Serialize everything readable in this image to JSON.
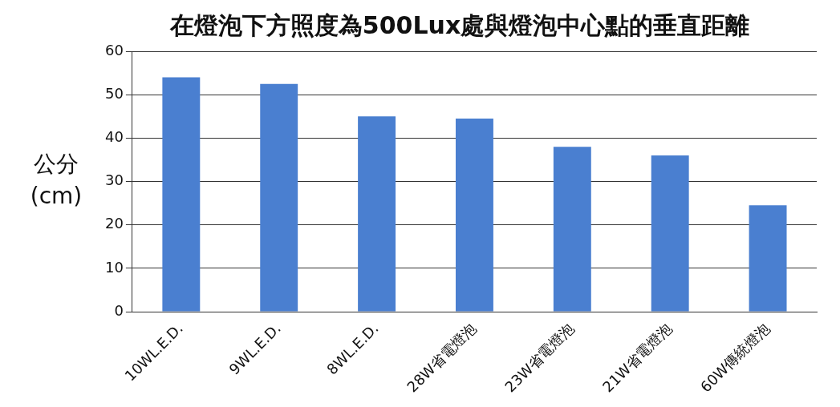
{
  "chart_data": {
    "type": "bar",
    "title": "在燈泡下方照度為500Lux處與燈泡中心點的垂直距離",
    "ylabel": "公分\n(cm)",
    "categories": [
      "10WL.E.D.",
      "9WL.E.D.",
      "8WL.E.D.",
      "28W省電燈泡",
      "23W省電燈泡",
      "21W省電燈泡",
      "60W傳統燈泡"
    ],
    "values": [
      54,
      52.5,
      45,
      44.5,
      38,
      36,
      24.5
    ],
    "color": "#4a7fd0",
    "ylim": [
      0,
      60
    ],
    "yticks": [
      0,
      10,
      20,
      30,
      40,
      50,
      60
    ],
    "grid": "y",
    "legend": false
  }
}
